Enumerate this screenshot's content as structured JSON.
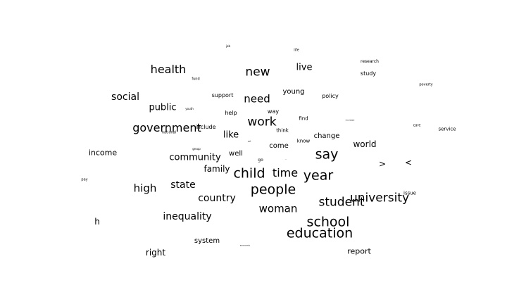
{
  "word_cloud": {
    "words": [
      {
        "text": "health"
      },
      {
        "text": "new"
      },
      {
        "text": "live"
      },
      {
        "text": "social"
      },
      {
        "text": "need"
      },
      {
        "text": "young"
      },
      {
        "text": "policy"
      },
      {
        "text": "support"
      },
      {
        "text": "public"
      },
      {
        "text": "help"
      },
      {
        "text": "way"
      },
      {
        "text": "work"
      },
      {
        "text": "find"
      },
      {
        "text": "government"
      },
      {
        "text": "include"
      },
      {
        "text": "like"
      },
      {
        "text": "think"
      },
      {
        "text": "change"
      },
      {
        "text": "know"
      },
      {
        "text": "come"
      },
      {
        "text": "world"
      },
      {
        "text": "say"
      },
      {
        "text": "income"
      },
      {
        "text": "well"
      },
      {
        "text": "community"
      },
      {
        "text": "go"
      },
      {
        "text": "family"
      },
      {
        "text": "child"
      },
      {
        "text": "time"
      },
      {
        "text": "year"
      },
      {
        "text": "high"
      },
      {
        "text": "state"
      },
      {
        "text": "people"
      },
      {
        "text": "country"
      },
      {
        "text": "university"
      },
      {
        "text": "student"
      },
      {
        "text": "woman"
      },
      {
        "text": "issue"
      },
      {
        "text": "inequality"
      },
      {
        "text": "school"
      },
      {
        "text": "h"
      },
      {
        "text": "education"
      },
      {
        "text": "system"
      },
      {
        "text": "right"
      },
      {
        "text": "report"
      },
      {
        "text": "research"
      },
      {
        "text": "study"
      },
      {
        "text": "life"
      },
      {
        "text": "job"
      },
      {
        "text": "poverty"
      },
      {
        "text": "care"
      },
      {
        "text": "service"
      },
      {
        "text": ">"
      },
      {
        "text": "<"
      },
      {
        "text": "pay"
      },
      {
        "text": "fund"
      },
      {
        "text": "youth"
      },
      {
        "text": "national"
      },
      {
        "text": "group"
      },
      {
        "text": "increase"
      },
      {
        "text": "economic"
      },
      {
        "text": "set"
      },
      {
        "text": "..."
      }
    ]
  }
}
